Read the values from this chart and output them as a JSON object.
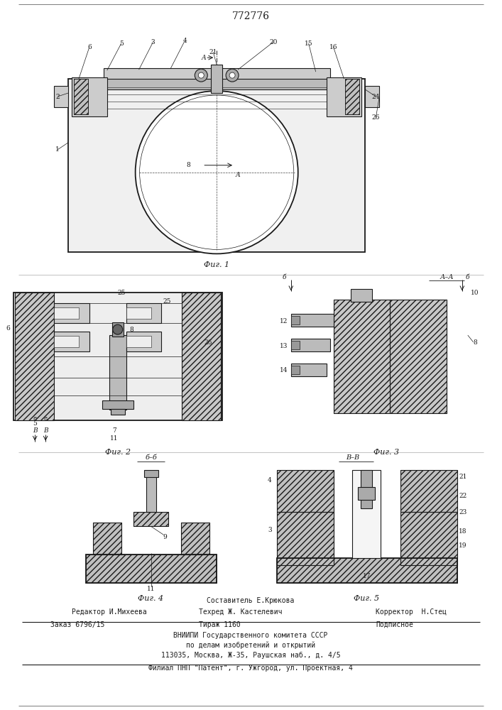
{
  "patent_number": "772776",
  "bg_color": "#ffffff",
  "lc": "#1a1a1a",
  "fig_width": 7.07,
  "fig_height": 10.0,
  "footer_sestavitel": "Составитель Е.Крюкова",
  "footer_editor": "Редактор И.Михеева",
  "footer_techred": "Техред Ж. Кастелевич",
  "footer_corrector": "Корректор  Н.Стец",
  "footer_order": "Заказ 6796/15",
  "footer_tirazh": "Тираж 1160",
  "footer_podpisnoe": "Подписное",
  "footer_vniiipi1": "ВНИИПИ Государственного комитета СССР",
  "footer_vniiipi2": "по делам изобретений и открытий",
  "footer_vniiipi3": "113035, Москва, Ж-35, Раушская наб., д. 4/5",
  "footer_filial": "Филиал ПНП \"Патент\", г. Ужгород, ул. Проектная, 4"
}
